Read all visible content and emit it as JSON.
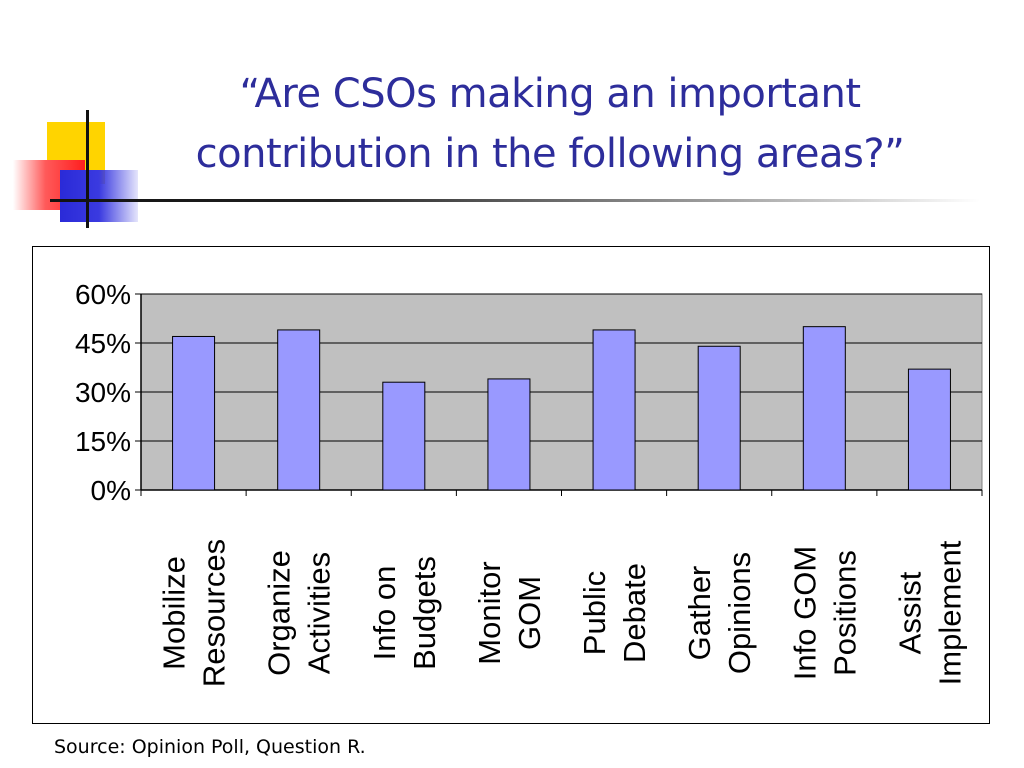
{
  "title": {
    "line1": "“Are CSOs making an important",
    "line2": "contribution in the following areas?”"
  },
  "source": "Source: Opinion Poll, Question R.",
  "colors": {
    "title": "#2d2d9b",
    "bar_fill": "#9999ff",
    "plot_background": "#c0c0c0",
    "deco_yellow": "#ffd400",
    "deco_red": "#ff1e1e",
    "deco_blue": "#2a2ad8"
  },
  "chart_data": {
    "type": "bar",
    "title": "",
    "xlabel": "",
    "ylabel": "",
    "categories": [
      [
        "Mobilize",
        "Resources"
      ],
      [
        "Organize",
        "Activities"
      ],
      [
        "Info on",
        "Budgets"
      ],
      [
        "Monitor",
        "GOM"
      ],
      [
        "Public",
        "Debate"
      ],
      [
        "Gather",
        "Opinions"
      ],
      [
        "Info GOM",
        "Positions"
      ],
      [
        "Assist",
        "Implement"
      ]
    ],
    "values": [
      47,
      49,
      33,
      34,
      49,
      44,
      50,
      37
    ],
    "unit": "%",
    "ylim": [
      0,
      60
    ],
    "yticks": [
      "0%",
      "15%",
      "30%",
      "45%",
      "60%"
    ],
    "grid": true,
    "legend": "none"
  }
}
